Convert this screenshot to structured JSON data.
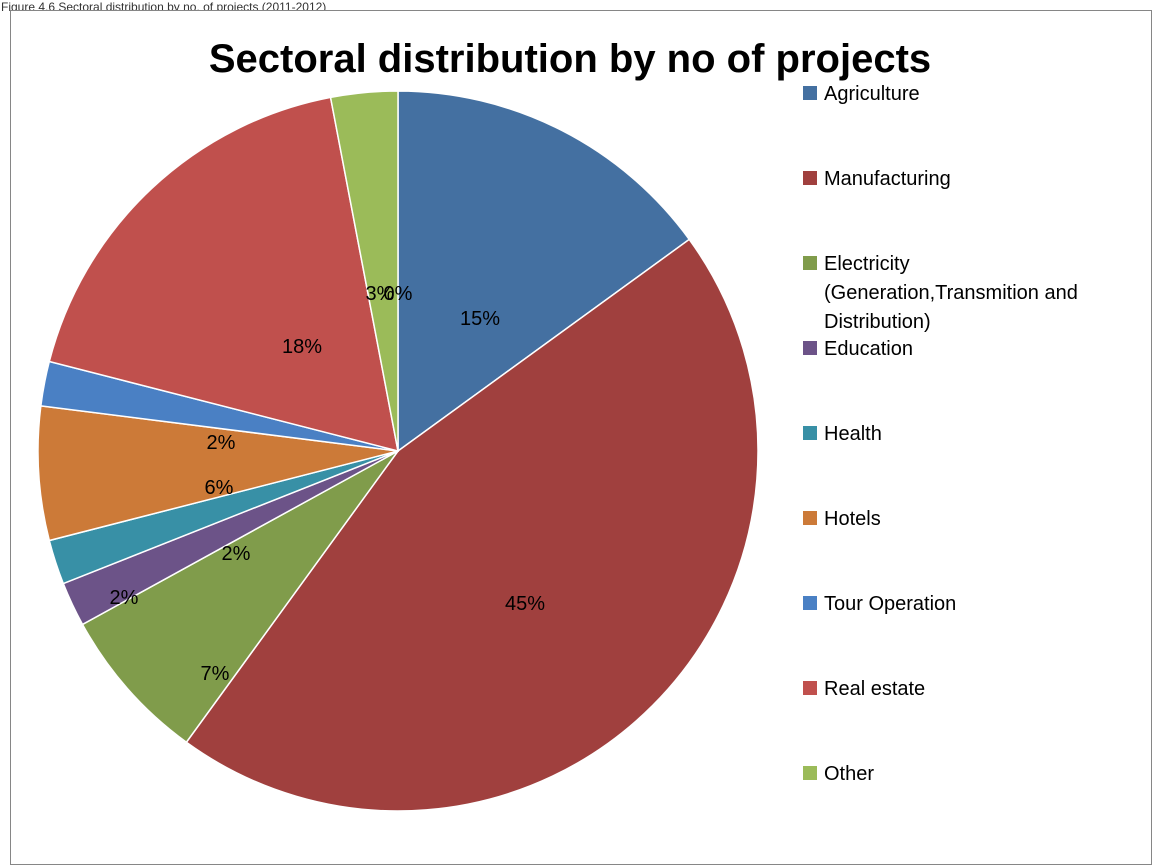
{
  "caption": "Figure 4.6 Sectoral distribution by no. of projects (2011-2012)",
  "chart_data": {
    "type": "pie",
    "title": "Sectoral distribution by no of projects",
    "start_angle_deg": 0,
    "direction": "clockwise",
    "slices": [
      {
        "label": "Agriculture",
        "value": 15,
        "display": "15%",
        "color": "#4470a1"
      },
      {
        "label": "Manufacturing",
        "value": 45,
        "display": "45%",
        "color": "#a0403e"
      },
      {
        "label": "Electricity (Generation,Transmition and Distribution)",
        "label_lines": [
          "Electricity",
          "(Generation,Transmition and",
          "Distribution)"
        ],
        "value": 7,
        "display": "7%",
        "color": "#809c4b"
      },
      {
        "label": "Education",
        "value": 2,
        "display": "2%",
        "color": "#6c5388"
      },
      {
        "label": "Health",
        "value": 2,
        "display": "2%",
        "color": "#3890a6"
      },
      {
        "label": "Hotels",
        "value": 6,
        "display": "6%",
        "color": "#cc7a38"
      },
      {
        "label": "Tour Operation",
        "value": 2,
        "display": "2%",
        "color": "#4a80c4"
      },
      {
        "label": "Real estate",
        "value": 18,
        "display": "18%",
        "color": "#c0504d"
      },
      {
        "label": "Other",
        "value": 3,
        "display": "3%",
        "color": "#9bbb59"
      },
      {
        "label": "",
        "value": 0,
        "display": "0%",
        "color": "#4470a1"
      }
    ],
    "legend_position": "right"
  }
}
